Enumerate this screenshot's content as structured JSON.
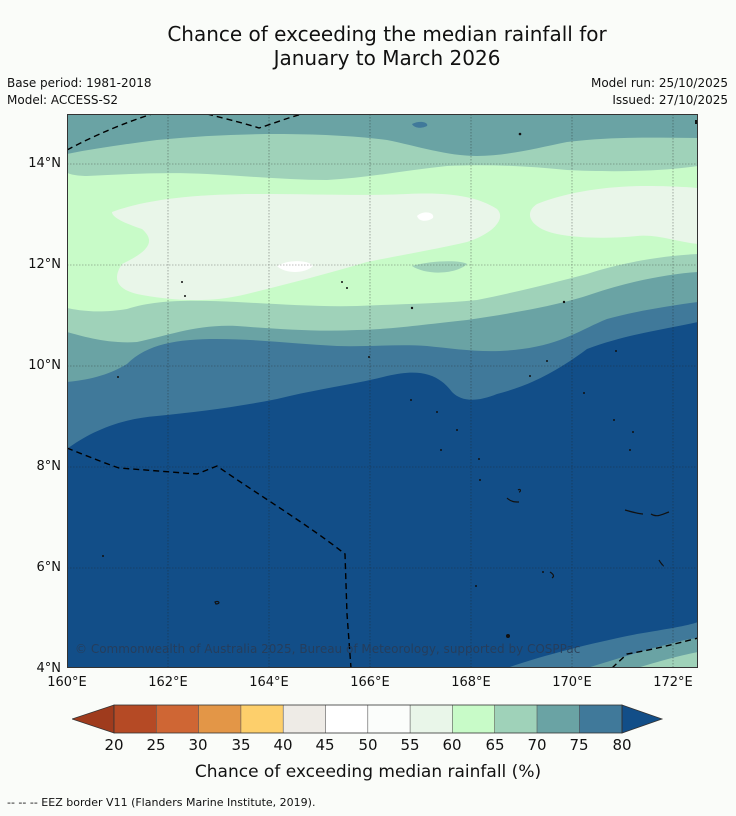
{
  "title": {
    "line1": "Chance of exceeding the median rainfall for",
    "line2": "January to March 2026"
  },
  "meta": {
    "base_period": "Base period: 1981-2018",
    "model": "Model: ACCESS-S2",
    "model_run": "Model run: 25/10/2025",
    "issued": "Issued: 27/10/2025"
  },
  "map": {
    "lon_range": [
      160,
      172.5
    ],
    "lat_range": [
      4,
      15
    ],
    "lon_ticks": [
      "160°E",
      "162°E",
      "164°E",
      "166°E",
      "168°E",
      "170°E",
      "172°E"
    ],
    "lat_ticks": [
      "14°N",
      "12°N",
      "10°N",
      "8°N",
      "6°N",
      "4°N"
    ],
    "copyright": "© Commonwealth of Australia 2025, Bureau of Meteorology, supported by COSPPac"
  },
  "legend": {
    "title": "Chance of exceeding median rainfall (%)",
    "labels": [
      "20",
      "25",
      "30",
      "35",
      "40",
      "45",
      "50",
      "55",
      "60",
      "65",
      "70",
      "75",
      "80"
    ],
    "colors": {
      "below_20": "#9f3b1d",
      "20_25": "#b54a25",
      "25_30": "#cf6634",
      "30_35": "#e39647",
      "35_40": "#fdcf6b",
      "40_45": "#eeebe6",
      "45_50": "#ffffff",
      "50_55": "#fbfdfb",
      "55_60": "#e9f6e9",
      "60_65": "#c8fbc8",
      "65_70": "#9fd2b9",
      "70_75": "#6aa3a4",
      "75_80": "#40799a",
      "above_80": "#124e88"
    }
  },
  "footnote": "--  --  -- EEZ border V11 (Flanders Marine Institute, 2019)."
}
